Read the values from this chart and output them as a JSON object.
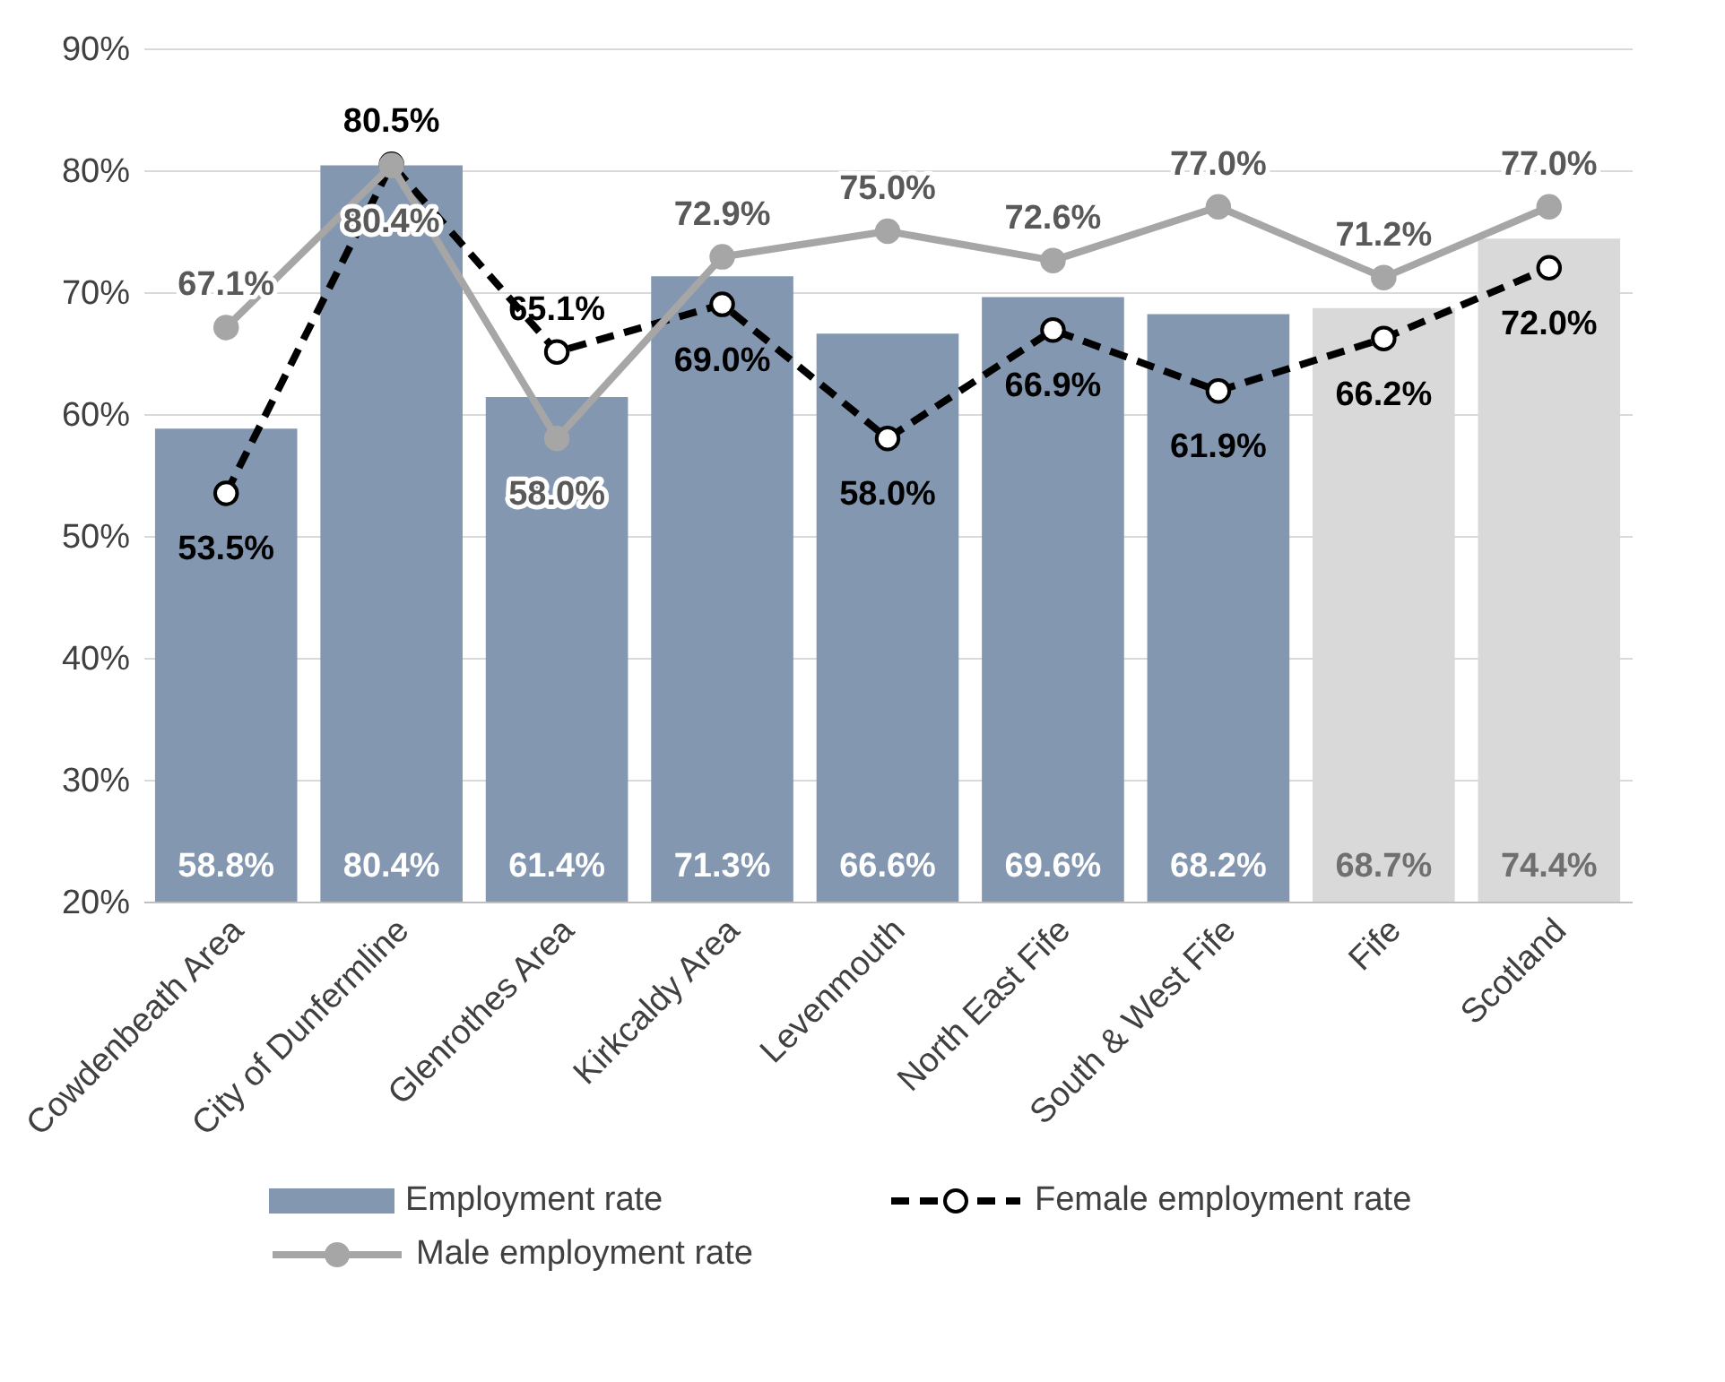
{
  "chart_data": {
    "type": "bar",
    "categories": [
      "Cowdenbeath Area",
      "City of Dunfermline",
      "Glenrothes Area",
      "Kirkcaldy Area",
      "Levenmouth",
      "North East Fife",
      "South & West Fife",
      "Fife",
      "Scotland"
    ],
    "series": [
      {
        "name": "Employment rate",
        "colors": [
          "#8497b0",
          "#8497b0",
          "#8497b0",
          "#8497b0",
          "#8497b0",
          "#8497b0",
          "#8497b0",
          "#d9d9d9",
          "#d9d9d9"
        ],
        "values": [
          58.8,
          80.4,
          61.4,
          71.3,
          66.6,
          69.6,
          68.2,
          68.7,
          74.4
        ],
        "value_labels": [
          "58.8%",
          "80.4%",
          "61.4%",
          "71.3%",
          "66.6%",
          "69.6%",
          "68.2%",
          "68.7%",
          "74.4%"
        ]
      },
      {
        "name": "Female employment rate",
        "type": "line",
        "color": "#000000",
        "line_style": "dashed",
        "marker": "circle",
        "values": [
          53.5,
          80.5,
          65.1,
          69.0,
          58.0,
          66.9,
          61.9,
          66.2,
          72.0
        ],
        "value_labels": [
          "53.5%",
          "80.5%",
          "65.1%",
          "69.0%",
          "58.0%",
          "66.9%",
          "61.9%",
          "66.2%",
          "72.0%"
        ]
      },
      {
        "name": "Male employment rate",
        "type": "line",
        "color": "#a6a6a6",
        "line_style": "solid",
        "marker": "circle",
        "values": [
          67.1,
          80.4,
          58.0,
          72.9,
          75.0,
          72.6,
          77.0,
          71.2,
          77.0
        ],
        "value_labels": [
          "67.1%",
          "80.4%",
          "58.0%",
          "72.9%",
          "75.0%",
          "72.6%",
          "77.0%",
          "71.2%",
          "77.0%"
        ]
      }
    ],
    "ylim": [
      20,
      90
    ],
    "yticks": [
      {
        "value": 20,
        "label": "20%"
      },
      {
        "value": 30,
        "label": "30%"
      },
      {
        "value": 40,
        "label": "40%"
      },
      {
        "value": 50,
        "label": "50%"
      },
      {
        "value": 60,
        "label": "60%"
      },
      {
        "value": 70,
        "label": "70%"
      },
      {
        "value": 80,
        "label": "80%"
      },
      {
        "value": 90,
        "label": "90%"
      }
    ],
    "grid": "y",
    "legend": "bottom"
  }
}
